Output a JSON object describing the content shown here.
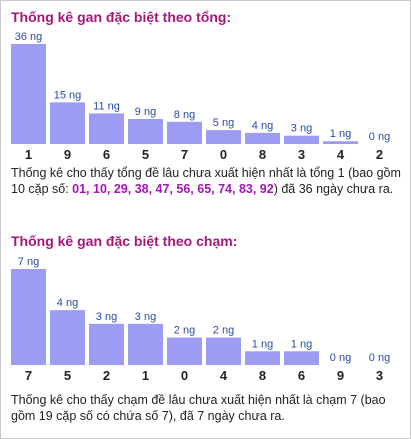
{
  "chart_data": [
    {
      "type": "bar",
      "title": "Thống kê gan đặc biệt theo tổng:",
      "categories": [
        "1",
        "9",
        "6",
        "5",
        "7",
        "0",
        "8",
        "3",
        "4",
        "2"
      ],
      "values": [
        36,
        15,
        11,
        9,
        8,
        5,
        4,
        3,
        1,
        0
      ],
      "value_labels": [
        "36 ng",
        "15 ng",
        "11 ng",
        "9 ng",
        "8 ng",
        "5 ng",
        "4 ng",
        "3 ng",
        "1 ng",
        "0 ng"
      ],
      "xlabel": "",
      "ylabel": "",
      "ylim": [
        0,
        36
      ],
      "bar_color": "#9c9cf2",
      "grid": false
    },
    {
      "type": "bar",
      "title": "Thống kê gan đặc biệt theo chạm:",
      "categories": [
        "7",
        "5",
        "2",
        "1",
        "0",
        "4",
        "8",
        "6",
        "9",
        "3"
      ],
      "values": [
        7,
        4,
        3,
        3,
        2,
        2,
        1,
        1,
        0,
        0
      ],
      "value_labels": [
        "7 ng",
        "4 ng",
        "3 ng",
        "3 ng",
        "2 ng",
        "2 ng",
        "1 ng",
        "1 ng",
        "0 ng",
        "0 ng"
      ],
      "xlabel": "",
      "ylabel": "",
      "ylim": [
        0,
        7
      ],
      "bar_color": "#9c9cf2",
      "grid": false
    }
  ],
  "notes": [
    {
      "prefix": "Thống kê cho thấy tổng đề lâu chưa xuất hiện nhất là tổng 1 (bao gồm 10 cặp số: ",
      "highlight": "01, 10, 29, 38, 47, 56, 65, 74, 83, 92",
      "suffix": ") đã 36 ngày chưa ra."
    },
    {
      "text": "Thống kê cho thấy chạm đề lâu chưa xuất hiện nhất là chạm 7 (bao gồm 19 cặp số có chứa số 7), đã 7 ngày chưa ra."
    }
  ],
  "colors": {
    "title": "#a3197a",
    "highlight": "#a316b6",
    "bar": "#9c9cf2",
    "value_label": "#2a4aa6"
  }
}
